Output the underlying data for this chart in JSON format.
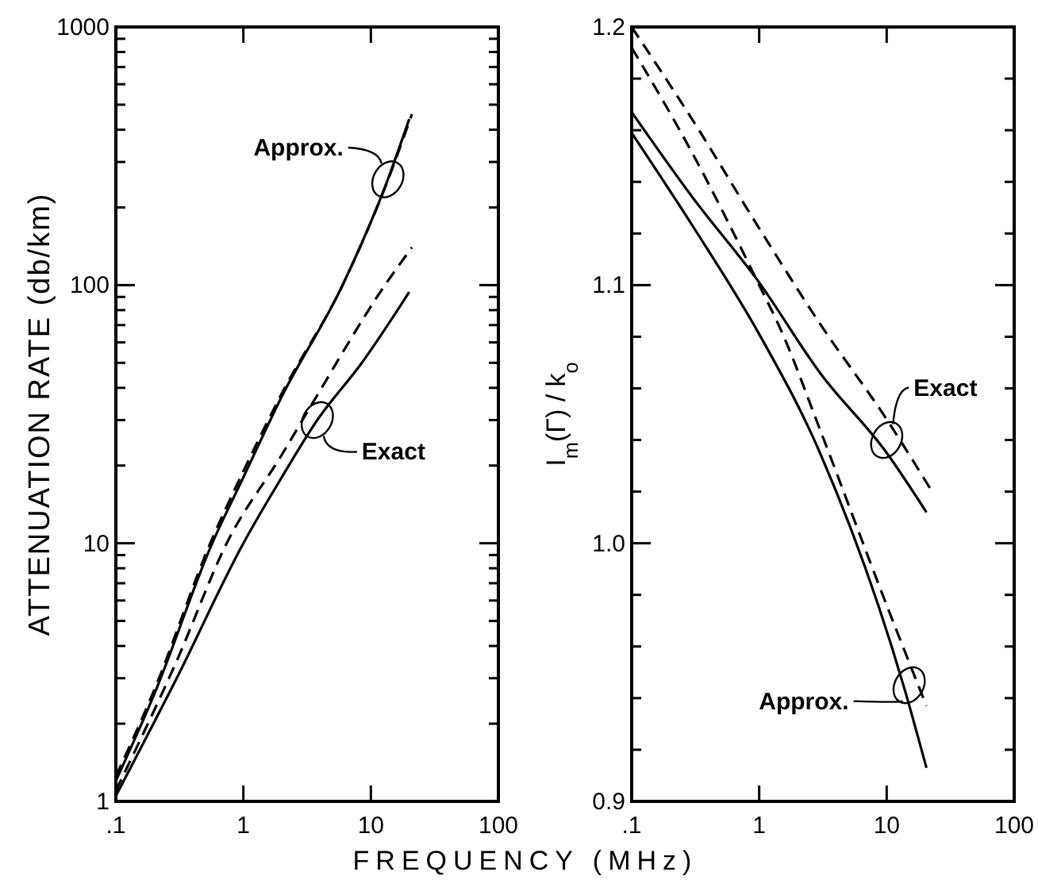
{
  "chart_data": [
    {
      "type": "line",
      "xlabel": "FREQUENCY (MHz)",
      "ylabel": "ATTENUATION RATE (db/km)",
      "log": "xy",
      "grid": false,
      "xlim": [
        0.1,
        100
      ],
      "ylim": [
        1,
        1000
      ],
      "xticks": [
        {
          "value": 0.1,
          "label": ".1"
        },
        1,
        10,
        100
      ],
      "yticks": [
        1,
        {
          "value": 2,
          "label": null
        },
        {
          "value": 3,
          "label": null
        },
        {
          "value": 4,
          "label": null
        },
        {
          "value": 5,
          "label": null
        },
        {
          "value": 6,
          "label": null
        },
        {
          "value": 7,
          "label": null
        },
        {
          "value": 8,
          "label": null
        },
        {
          "value": 9,
          "label": null
        },
        10,
        {
          "value": 20,
          "label": null
        },
        {
          "value": 30,
          "label": null
        },
        {
          "value": 40,
          "label": null
        },
        {
          "value": 50,
          "label": null
        },
        {
          "value": 60,
          "label": null
        },
        {
          "value": 70,
          "label": null
        },
        {
          "value": 80,
          "label": null
        },
        {
          "value": 90,
          "label": null
        },
        100,
        {
          "value": 200,
          "label": null
        },
        {
          "value": 300,
          "label": null
        },
        {
          "value": 400,
          "label": null
        },
        {
          "value": 500,
          "label": null
        },
        {
          "value": 600,
          "label": null
        },
        {
          "value": 700,
          "label": null
        },
        {
          "value": 800,
          "label": null
        },
        {
          "value": 900,
          "label": null
        },
        1000
      ],
      "series": [
        {
          "color": "#000000",
          "line_style": "solid",
          "x": [
            0.1,
            0.2,
            0.57,
            1,
            2,
            6,
            13.6,
            20
          ],
          "values": [
            1.2,
            2.6,
            10,
            18,
            37,
            100,
            257,
            440
          ]
        },
        {
          "color": "#000000",
          "line_style": "dashed",
          "x": [
            0.1,
            0.2,
            0.55,
            1,
            2,
            6,
            13.6,
            21
          ],
          "values": [
            1.25,
            2.7,
            10,
            19,
            38,
            100,
            255,
            460
          ]
        },
        {
          "color": "#000000",
          "line_style": "dashed",
          "x": [
            0.1,
            0.3,
            0.74,
            2,
            3.5,
            12.9,
            21
          ],
          "values": [
            1.1,
            3.5,
            10,
            22,
            35,
            100,
            140
          ]
        },
        {
          "color": "#000000",
          "line_style": "solid",
          "x": [
            0.1,
            0.3,
            1,
            2,
            3.8,
            8.5,
            20
          ],
          "values": [
            1.05,
            3,
            10,
            18,
            30,
            50,
            94
          ]
        }
      ],
      "annotations": [
        {
          "text": "Approx.",
          "x": 13.6,
          "y": 257
        },
        {
          "text": "Exact",
          "x": 3.8,
          "y": 30
        }
      ]
    },
    {
      "type": "line",
      "ylabel": "I$_{m}$(Γ) / k$_{o}$",
      "log": "x",
      "grid": false,
      "xlim": [
        0.1,
        100
      ],
      "ylim": [
        0.9,
        1.2
      ],
      "xticks": [
        {
          "value": 0.1,
          "label": ".1"
        },
        1,
        10,
        100
      ],
      "yticks": [
        {
          "value": 0.9,
          "label": "0.9"
        },
        {
          "value": 0.92,
          "label": null
        },
        {
          "value": 0.94,
          "label": null
        },
        {
          "value": 0.96,
          "label": null
        },
        {
          "value": 0.98,
          "label": null
        },
        {
          "value": 1.0,
          "label": "1.0"
        },
        {
          "value": 1.02,
          "label": null
        },
        {
          "value": 1.04,
          "label": null
        },
        {
          "value": 1.06,
          "label": null
        },
        {
          "value": 1.08,
          "label": null
        },
        {
          "value": 1.1,
          "label": "1.1"
        },
        {
          "value": 1.12,
          "label": null
        },
        {
          "value": 1.14,
          "label": null
        },
        {
          "value": 1.16,
          "label": null
        },
        {
          "value": 1.18,
          "label": null
        },
        {
          "value": 1.2,
          "label": "1.2"
        }
      ],
      "series": [
        {
          "color": "#000000",
          "line_style": "dashed",
          "x": [
            0.1,
            0.3,
            1,
            3,
            10,
            22.7
          ],
          "values": [
            1.2,
            1.164,
            1.122,
            1.085,
            1.048,
            1.02
          ]
        },
        {
          "color": "#000000",
          "line_style": "dashed",
          "x": [
            0.1,
            0.3,
            1,
            1.5,
            3,
            10,
            20.5
          ],
          "values": [
            1.192,
            1.151,
            1.1,
            1.082,
            1.044,
            0.976,
            0.937
          ]
        },
        {
          "color": "#000000",
          "line_style": "solid",
          "x": [
            0.1,
            0.3,
            1,
            3,
            10,
            20.5
          ],
          "values": [
            1.167,
            1.134,
            1.101,
            1.066,
            1.035,
            1.012
          ]
        },
        {
          "color": "#000000",
          "line_style": "solid",
          "x": [
            0.1,
            0.3,
            1,
            3,
            13.9,
            20.5
          ],
          "values": [
            1.159,
            1.123,
            1.081,
            1.035,
            0.943,
            0.913
          ]
        }
      ],
      "annotations": [
        {
          "text": "Exact",
          "x": 10,
          "y": 1.04
        },
        {
          "text": "Approx.",
          "x": 15,
          "y": 0.945
        }
      ]
    }
  ]
}
